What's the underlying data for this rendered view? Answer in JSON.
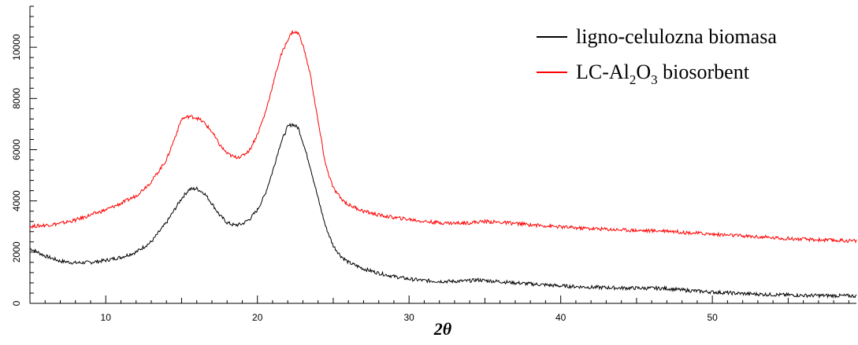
{
  "chart_data": {
    "type": "line",
    "title": "",
    "xlabel": "2θ",
    "ylabel": "",
    "xlim": [
      5,
      59.5
    ],
    "ylim": [
      0,
      11600
    ],
    "grid": false,
    "legend_placement": "top-right",
    "x_ticks": [
      10,
      20,
      30,
      40,
      50
    ],
    "x_tick_labels": [
      "10",
      "20",
      "30",
      "40",
      "50"
    ],
    "y_ticks": [
      0,
      2000,
      4000,
      6000,
      8000,
      10000
    ],
    "y_tick_labels": [
      "0",
      "2000",
      "4000",
      "6000",
      "8000",
      "10000"
    ],
    "series": [
      {
        "name": "ligno-celulozna biomasa",
        "legend_label": {
          "pre": "ligno-celulozna biomasa"
        },
        "color": "#000000",
        "points": [
          [
            5,
            2150
          ],
          [
            6,
            1850
          ],
          [
            7,
            1650
          ],
          [
            8,
            1580
          ],
          [
            9,
            1600
          ],
          [
            10,
            1680
          ],
          [
            11,
            1800
          ],
          [
            12,
            2000
          ],
          [
            13,
            2400
          ],
          [
            14,
            3150
          ],
          [
            15,
            4100
          ],
          [
            15.5,
            4450
          ],
          [
            16,
            4480
          ],
          [
            16.5,
            4300
          ],
          [
            17,
            3900
          ],
          [
            17.5,
            3450
          ],
          [
            18,
            3150
          ],
          [
            18.5,
            3050
          ],
          [
            19,
            3100
          ],
          [
            19.5,
            3300
          ],
          [
            20,
            3650
          ],
          [
            20.5,
            4250
          ],
          [
            21,
            5150
          ],
          [
            21.5,
            6200
          ],
          [
            22,
            6900
          ],
          [
            22.3,
            7000
          ],
          [
            22.7,
            6850
          ],
          [
            23,
            6300
          ],
          [
            23.5,
            5300
          ],
          [
            24,
            4100
          ],
          [
            24.5,
            3000
          ],
          [
            25,
            2250
          ],
          [
            25.5,
            1850
          ],
          [
            26,
            1600
          ],
          [
            27,
            1350
          ],
          [
            28,
            1180
          ],
          [
            29,
            1050
          ],
          [
            30,
            950
          ],
          [
            31,
            890
          ],
          [
            32,
            860
          ],
          [
            33,
            860
          ],
          [
            34,
            880
          ],
          [
            34.5,
            920
          ],
          [
            35,
            890
          ],
          [
            36,
            850
          ],
          [
            37,
            800
          ],
          [
            38,
            760
          ],
          [
            39,
            720
          ],
          [
            40,
            680
          ],
          [
            42,
            630
          ],
          [
            44,
            600
          ],
          [
            46,
            590
          ],
          [
            47,
            580
          ],
          [
            48,
            520
          ],
          [
            50,
            440
          ],
          [
            52,
            380
          ],
          [
            54,
            340
          ],
          [
            56,
            310
          ],
          [
            58,
            300
          ],
          [
            59.5,
            290
          ]
        ]
      },
      {
        "name": "LC-Al2O3 biosorbent",
        "legend_label": {
          "pre": "LC-Al",
          "sub1": "2",
          "mid": "O",
          "sub2": "3",
          "post": " biosorbent"
        },
        "color": "#ff0000",
        "points": [
          [
            5,
            3000
          ],
          [
            6,
            3050
          ],
          [
            7,
            3120
          ],
          [
            8,
            3250
          ],
          [
            9,
            3450
          ],
          [
            10,
            3650
          ],
          [
            11,
            3900
          ],
          [
            12,
            4200
          ],
          [
            13,
            4750
          ],
          [
            14,
            5600
          ],
          [
            14.7,
            6700
          ],
          [
            15,
            7200
          ],
          [
            15.5,
            7300
          ],
          [
            16,
            7250
          ],
          [
            16.5,
            7050
          ],
          [
            17,
            6700
          ],
          [
            17.5,
            6200
          ],
          [
            18,
            5850
          ],
          [
            18.5,
            5700
          ],
          [
            19,
            5750
          ],
          [
            19.5,
            6000
          ],
          [
            20,
            6600
          ],
          [
            20.5,
            7400
          ],
          [
            21,
            8500
          ],
          [
            21.5,
            9600
          ],
          [
            22,
            10300
          ],
          [
            22.3,
            10600
          ],
          [
            22.7,
            10550
          ],
          [
            23,
            10100
          ],
          [
            23.5,
            8900
          ],
          [
            24,
            7100
          ],
          [
            24.5,
            5400
          ],
          [
            25,
            4500
          ],
          [
            25.5,
            4100
          ],
          [
            26,
            3850
          ],
          [
            27,
            3600
          ],
          [
            28,
            3450
          ],
          [
            29,
            3350
          ],
          [
            30,
            3280
          ],
          [
            31,
            3200
          ],
          [
            32,
            3150
          ],
          [
            33,
            3130
          ],
          [
            34,
            3150
          ],
          [
            35,
            3200
          ],
          [
            36,
            3160
          ],
          [
            37,
            3120
          ],
          [
            38,
            3070
          ],
          [
            39,
            3030
          ],
          [
            40,
            2980
          ],
          [
            42,
            2920
          ],
          [
            44,
            2870
          ],
          [
            46,
            2830
          ],
          [
            47,
            2840
          ],
          [
            48,
            2780
          ],
          [
            50,
            2700
          ],
          [
            52,
            2630
          ],
          [
            54,
            2560
          ],
          [
            56,
            2500
          ],
          [
            58,
            2460
          ],
          [
            59.5,
            2440
          ]
        ]
      }
    ]
  }
}
